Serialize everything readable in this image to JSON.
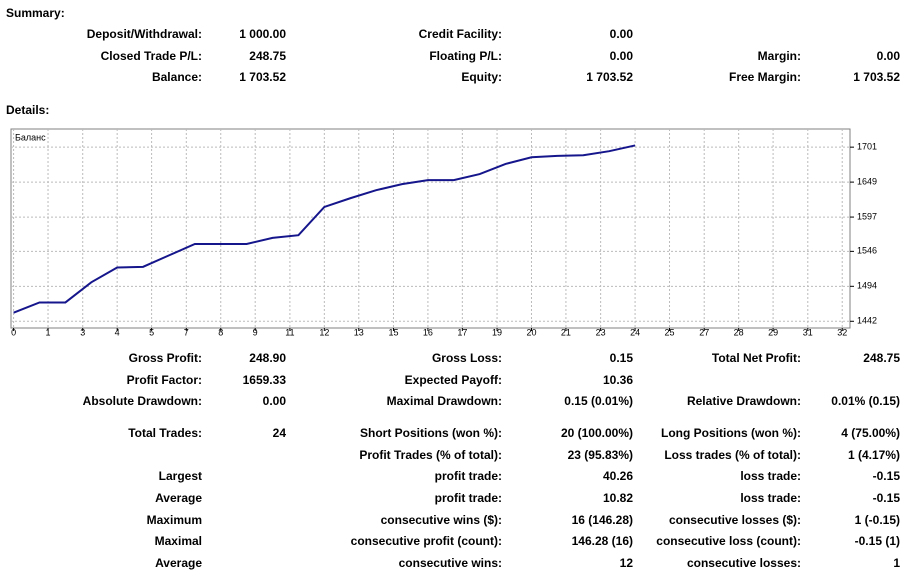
{
  "summary": {
    "heading": "Summary:",
    "rows": [
      [
        "Deposit/Withdrawal:",
        "1 000.00",
        "Credit Facility:",
        "0.00",
        null,
        null
      ],
      [
        "Closed Trade P/L:",
        "248.75",
        "Floating P/L:",
        "0.00",
        "Margin:",
        "0.00"
      ],
      [
        "Balance:",
        "1 703.52",
        "Equity:",
        "1 703.52",
        "Free Margin:",
        "1 703.52"
      ]
    ]
  },
  "details": {
    "heading": "Details:",
    "rows": [
      [
        "Gross Profit:",
        "248.90",
        "Gross Loss:",
        "0.15",
        "Total Net Profit:",
        "248.75"
      ],
      [
        "Profit Factor:",
        "1659.33",
        "Expected Payoff:",
        "10.36",
        null,
        null
      ],
      [
        "Absolute Drawdown:",
        "0.00",
        "Maximal Drawdown:",
        "0.15 (0.01%)",
        "Relative Drawdown:",
        "0.01% (0.15)"
      ],
      [
        "Total Trades:",
        "24",
        "Short Positions (won %):",
        "20 (100.00%)",
        "Long Positions (won %):",
        "4 (75.00%)"
      ],
      [
        null,
        null,
        "Profit Trades (% of total):",
        "23 (95.83%)",
        "Loss trades (% of total):",
        "1 (4.17%)"
      ],
      [
        "Largest",
        null,
        "profit trade:",
        "40.26",
        "loss trade:",
        "-0.15"
      ],
      [
        "Average",
        null,
        "profit trade:",
        "10.82",
        "loss trade:",
        "-0.15"
      ],
      [
        "Maximum",
        null,
        "consecutive wins ($):",
        "16 (146.28)",
        "consecutive losses ($):",
        "1 (-0.15)"
      ],
      [
        "Maximal",
        null,
        "consecutive profit (count):",
        "146.28 (16)",
        "consecutive loss (count):",
        "-0.15 (1)"
      ],
      [
        "Average",
        null,
        "consecutive wins:",
        "12",
        "consecutive losses:",
        "1"
      ]
    ]
  },
  "chart_data": {
    "type": "line",
    "x": [
      0,
      1,
      2,
      3,
      4,
      5,
      6,
      7,
      8,
      9,
      10,
      11,
      12,
      13,
      14,
      15,
      16,
      17,
      18,
      19,
      20,
      21,
      22,
      23,
      24
    ],
    "series": [
      {
        "name": "Баланс",
        "color": "#16168c",
        "values": [
          1454.77,
          1470,
          1470,
          1500,
          1522,
          1523,
          1540,
          1557,
          1557,
          1557,
          1566,
          1570,
          1612,
          1625,
          1637,
          1646,
          1652,
          1652,
          1661,
          1676,
          1686,
          1688,
          1689,
          1695,
          1703.52
        ]
      }
    ],
    "xlim": [
      -0.1,
      32.3
    ],
    "ylim": [
      1432,
      1728
    ],
    "xticks": [
      0,
      {
        "value": 1.33,
        "label": "1"
      },
      {
        "value": 2.67,
        "label": "3"
      },
      4,
      {
        "value": 5.33,
        "label": "5"
      },
      {
        "value": 6.67,
        "label": "7"
      },
      8,
      {
        "value": 9.33,
        "label": "9"
      },
      {
        "value": 10.67,
        "label": "11"
      },
      12,
      {
        "value": 13.33,
        "label": "13"
      },
      {
        "value": 14.67,
        "label": "15"
      },
      16,
      {
        "value": 17.33,
        "label": "17"
      },
      {
        "value": 18.67,
        "label": "19"
      },
      20,
      {
        "value": 21.33,
        "label": "21"
      },
      {
        "value": 22.67,
        "label": "23"
      },
      24,
      {
        "value": 25.33,
        "label": "25"
      },
      {
        "value": 26.67,
        "label": "27"
      },
      28,
      {
        "value": 29.33,
        "label": "29"
      },
      {
        "value": 30.67,
        "label": "31"
      },
      32
    ],
    "yticks": [
      1442,
      1494,
      1546,
      1597,
      1649,
      1701
    ],
    "grid": true
  }
}
